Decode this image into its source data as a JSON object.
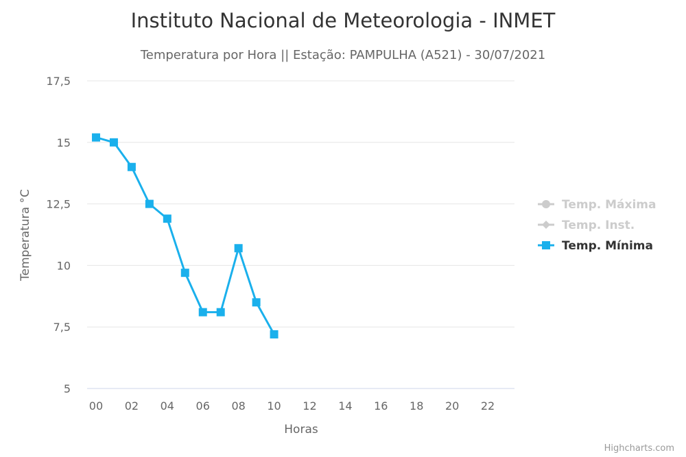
{
  "chart_data": {
    "type": "line",
    "title": "Instituto Nacional de Meteorologia - INMET",
    "subtitle": "Temperatura por Hora || Estação: PAMPULHA (A521) - 30/07/2021",
    "xlabel": "Horas",
    "ylabel": "Temperatura °C",
    "xlim": [
      -0.5,
      23.5
    ],
    "ylim": [
      5,
      17.5
    ],
    "x_ticks": [
      "00",
      "02",
      "04",
      "06",
      "08",
      "10",
      "12",
      "14",
      "16",
      "18",
      "20",
      "22"
    ],
    "x_tick_values": [
      0,
      2,
      4,
      6,
      8,
      10,
      12,
      14,
      16,
      18,
      20,
      22
    ],
    "y_ticks": [
      "5",
      "7,5",
      "10",
      "12,5",
      "15",
      "17,5"
    ],
    "y_tick_values": [
      5,
      7.5,
      10,
      12.5,
      15,
      17.5
    ],
    "grid": true,
    "legend_position": "right",
    "series": [
      {
        "name": "Temp. Máxima",
        "color": "#cccccc",
        "marker": "circle",
        "visible": false,
        "x": [],
        "values": []
      },
      {
        "name": "Temp. Inst.",
        "color": "#cccccc",
        "marker": "diamond",
        "visible": false,
        "x": [],
        "values": []
      },
      {
        "name": "Temp. Mínima",
        "color": "#1ab0ec",
        "marker": "square",
        "visible": true,
        "x": [
          0,
          1,
          2,
          3,
          4,
          5,
          6,
          7,
          8,
          9,
          10
        ],
        "values": [
          15.2,
          15.0,
          14.0,
          12.5,
          11.9,
          9.7,
          8.1,
          8.1,
          10.7,
          8.5,
          7.2
        ]
      }
    ]
  },
  "credits": "Highcharts.com"
}
